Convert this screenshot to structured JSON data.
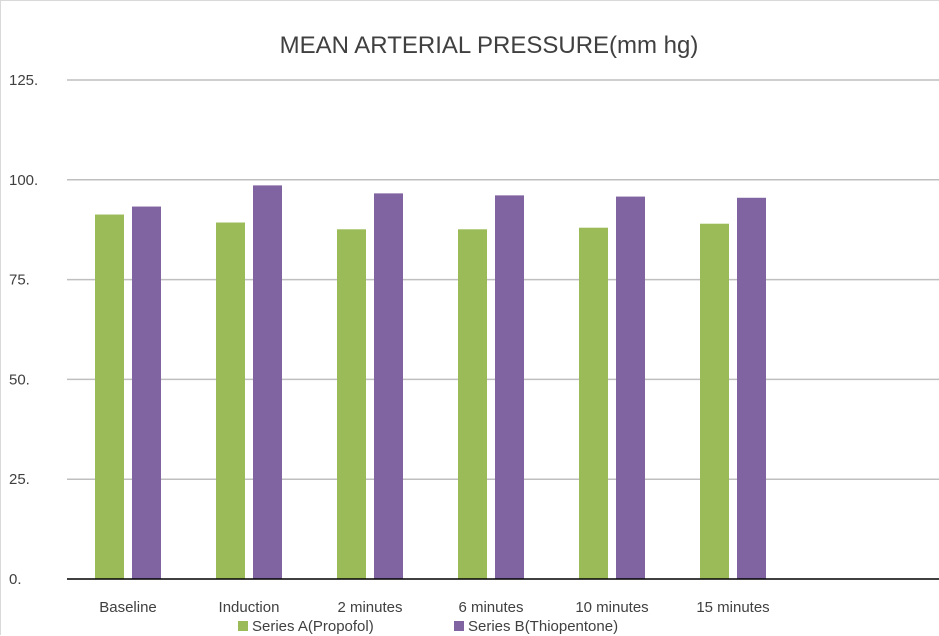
{
  "chart_data": {
    "type": "bar",
    "title": "MEAN ARTERIAL PRESSURE(mm hg)",
    "xlabel": "",
    "ylabel": "",
    "categories": [
      "Baseline",
      "Induction",
      "2 minutes",
      "6 minutes",
      "10 minutes",
      "15 minutes"
    ],
    "series": [
      {
        "name": "Series A(Propofol)",
        "color": "#9BBB59",
        "values": [
          91.3,
          89.3,
          87.6,
          87.6,
          88.0,
          89.0
        ]
      },
      {
        "name": "Series B(Thiopentone)",
        "color": "#8064A2",
        "values": [
          93.3,
          98.6,
          96.6,
          96.1,
          95.8,
          95.5
        ]
      }
    ],
    "ylim": [
      0,
      125
    ],
    "yticks": [
      0,
      25,
      50,
      75,
      100,
      125
    ],
    "ytick_labels": [
      "0.",
      "25.",
      "50.",
      "75.",
      "100.",
      "125."
    ],
    "grid": true,
    "legend_position": "bottom"
  }
}
